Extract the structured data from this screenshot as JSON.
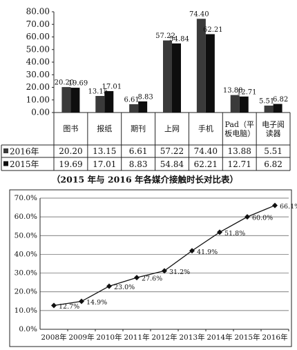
{
  "chart_data": [
    {
      "type": "bar",
      "caption": "（2015 年与 2016 年各媒介接触时长对比表）",
      "categories": [
        "图书",
        "报纸",
        "期刊",
        "上网",
        "手机",
        "Pad（平板电脑）",
        "电子阅读器"
      ],
      "series": [
        {
          "name": "2016年",
          "color": "#3a3a3a",
          "values": [
            20.2,
            13.15,
            6.61,
            57.22,
            74.4,
            13.88,
            5.51
          ],
          "value_labels": [
            "20.20",
            "13.15",
            "6.61",
            "57.22",
            "74.40",
            "13.88",
            "5.51"
          ]
        },
        {
          "name": "2015年",
          "color": "#0e0e0e",
          "values": [
            19.69,
            17.01,
            8.83,
            54.84,
            62.21,
            12.71,
            6.82
          ],
          "value_labels": [
            "19.69",
            "17.01",
            "8.83",
            "54.84",
            "62.21",
            "12.71",
            "6.82"
          ]
        }
      ],
      "ylim": [
        0,
        80
      ],
      "yticks": [
        {
          "value": 0,
          "label": "0.00"
        },
        {
          "value": 10,
          "label": "10.00"
        },
        {
          "value": 20,
          "label": "20.00"
        },
        {
          "value": 30,
          "label": "30.00"
        },
        {
          "value": 40,
          "label": "40.00"
        },
        {
          "value": 50,
          "label": "50.00"
        },
        {
          "value": 60,
          "label": "60.00"
        },
        {
          "value": 70,
          "label": "70.00"
        },
        {
          "value": 80,
          "label": "80.00"
        }
      ],
      "grid": false
    },
    {
      "type": "line",
      "categories": [
        "2008年",
        "2009年",
        "2010年",
        "2011年",
        "2012年",
        "2013年",
        "2014年",
        "2015年",
        "2016年"
      ],
      "values": [
        12.7,
        14.9,
        23.0,
        27.6,
        31.2,
        41.9,
        51.8,
        60.0,
        66.1
      ],
      "value_labels": [
        "12.7%",
        "14.9%",
        "23.0%",
        "27.6%",
        "31.2%",
        "41.9%",
        "51.8%",
        "60.0%",
        "66.1%"
      ],
      "color": "#111111",
      "ylim": [
        0,
        70
      ],
      "yticks": [
        {
          "value": 0,
          "label": "0.0%"
        },
        {
          "value": 10,
          "label": "10.0%"
        },
        {
          "value": 20,
          "label": "20.0%"
        },
        {
          "value": 30,
          "label": "30.0%"
        },
        {
          "value": 40,
          "label": "40.0%"
        },
        {
          "value": 50,
          "label": "50.0%"
        },
        {
          "value": 60,
          "label": "60.0%"
        },
        {
          "value": 70,
          "label": "70.0%"
        }
      ],
      "grid": true
    }
  ]
}
